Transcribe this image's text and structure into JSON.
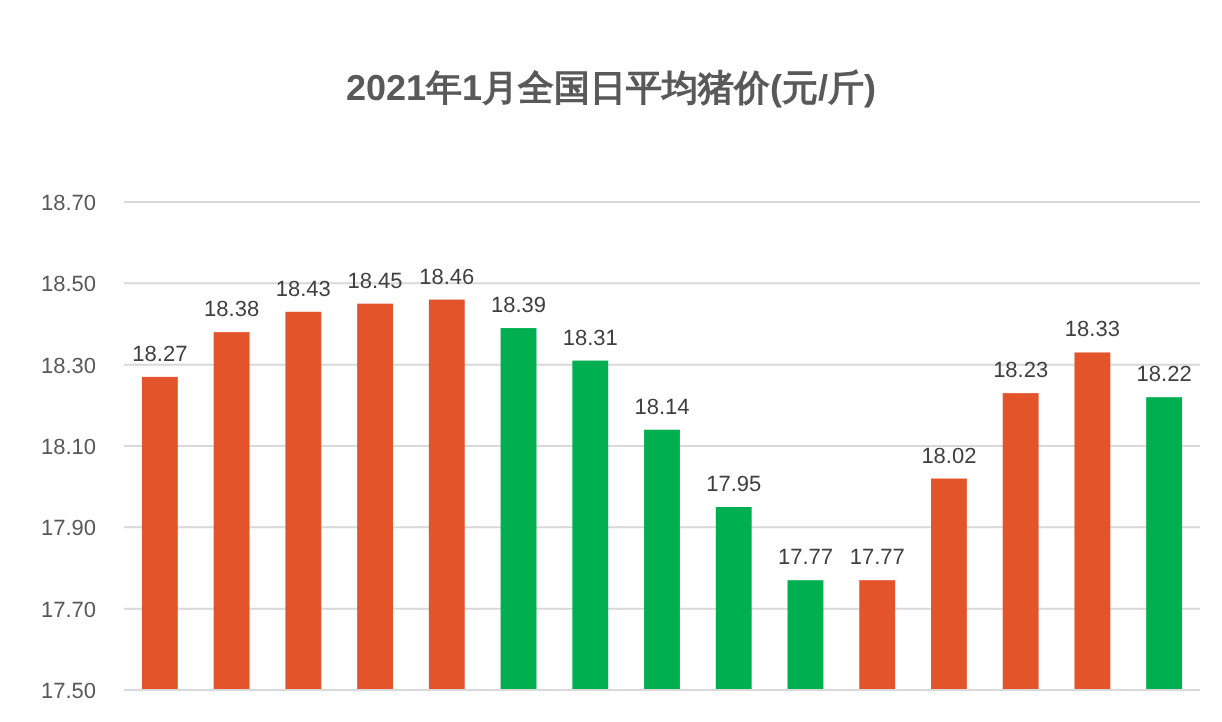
{
  "chart_data": {
    "type": "bar",
    "title": "2021年1月全国日平均猪价(元/斤)",
    "categories": [
      null,
      null,
      null,
      null,
      null,
      null,
      null,
      null,
      null,
      null,
      null,
      null,
      null,
      null,
      null
    ],
    "values": [
      18.27,
      18.38,
      18.43,
      18.45,
      18.46,
      18.39,
      18.31,
      18.14,
      17.95,
      17.77,
      17.77,
      18.02,
      18.23,
      18.33,
      18.22
    ],
    "colors": [
      "#e4542a",
      "#e4542a",
      "#e4542a",
      "#e4542a",
      "#e4542a",
      "#00b050",
      "#00b050",
      "#00b050",
      "#00b050",
      "#00b050",
      "#e4542a",
      "#e4542a",
      "#e4542a",
      "#e4542a",
      "#00b050"
    ],
    "ylim": [
      17.5,
      18.7
    ],
    "yticks": [
      {
        "value": 17.5,
        "label": "17.50"
      },
      {
        "value": 17.7,
        "label": "17.70"
      },
      {
        "value": 17.9,
        "label": "17.90"
      },
      {
        "value": 18.1,
        "label": "18.10"
      },
      {
        "value": 18.3,
        "label": "18.30"
      },
      {
        "value": 18.5,
        "label": "18.50"
      },
      {
        "value": 18.7,
        "label": "18.70"
      }
    ],
    "grid": "y",
    "data_labels": true
  }
}
